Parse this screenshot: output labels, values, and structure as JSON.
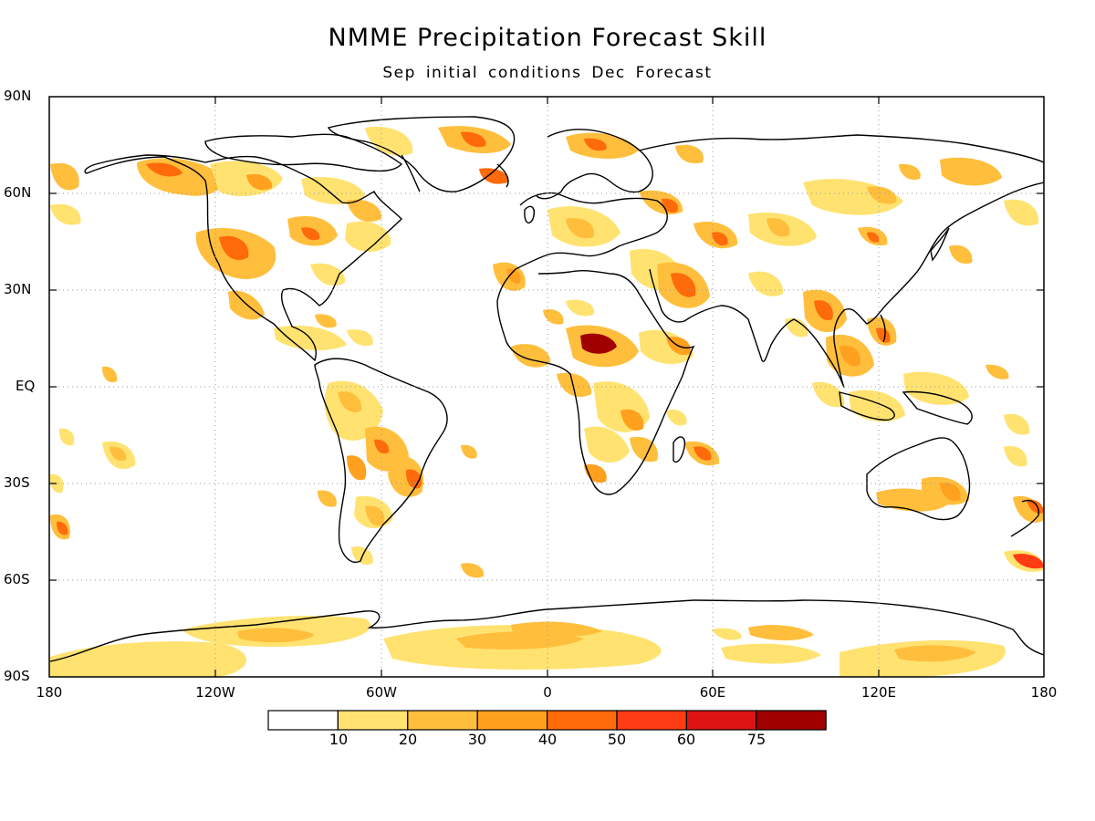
{
  "title": "NMME Precipitation Forecast Skill",
  "subtitle": "Sep initial conditions  Dec Forecast",
  "lat_labels": [
    "90N",
    "60N",
    "30N",
    "EQ",
    "30S",
    "60S",
    "90S"
  ],
  "lon_labels": [
    "180",
    "120W",
    "60W",
    "0",
    "60E",
    "120E",
    "180"
  ],
  "colorbar": {
    "labels": [
      "10",
      "20",
      "30",
      "40",
      "50",
      "60",
      "75"
    ],
    "colors": [
      "#ffffff",
      "#ffe270",
      "#ffbe3c",
      "#ffa01e",
      "#ff6a0a",
      "#ff3c14",
      "#dc1414",
      "#a00000"
    ]
  },
  "colors": {
    "coast": "#000000",
    "grid": "#9a9a9a"
  }
}
